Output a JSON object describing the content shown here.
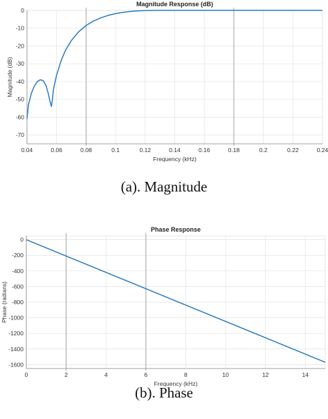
{
  "chart_data": [
    {
      "type": "line",
      "title": "Magnitude Response (dB)",
      "xlabel": "Frequency (kHz)",
      "ylabel": "Magnitude (dB)",
      "xlim": [
        0.04,
        0.24
      ],
      "ylim": [
        -75,
        0
      ],
      "xticks": [
        0.04,
        0.06,
        0.08,
        0.1,
        0.12,
        0.14,
        0.16,
        0.18,
        0.2,
        0.22,
        0.24
      ],
      "xtick_labels": [
        "0.04",
        "0.06",
        "0.08",
        "0.1",
        "0.12",
        "0.14",
        "0.16",
        "0.18",
        "0.2",
        "0.22",
        "0.24"
      ],
      "yticks": [
        0,
        -10,
        -20,
        -30,
        -40,
        -50,
        -60,
        -70
      ],
      "ytick_labels": [
        "0",
        "-10",
        "-20",
        "-30",
        "-40",
        "-50",
        "-60",
        "-70"
      ],
      "grid": true,
      "color": "#2a7bbf",
      "series": [
        {
          "x": [
            0.04,
            0.041,
            0.043,
            0.045,
            0.047,
            0.049,
            0.051,
            0.053,
            0.0545,
            0.0555,
            0.0565,
            0.057,
            0.058,
            0.06,
            0.063,
            0.066,
            0.07,
            0.075,
            0.08,
            0.085,
            0.09,
            0.095,
            0.1,
            0.105,
            0.11,
            0.115,
            0.12,
            0.13,
            0.14,
            0.16,
            0.18,
            0.2,
            0.22,
            0.24
          ],
          "y": [
            -61,
            -53,
            -46.5,
            -42.5,
            -40,
            -39,
            -39.5,
            -42.5,
            -47,
            -51,
            -54,
            -51.5,
            -44,
            -36.5,
            -28.5,
            -22.5,
            -17,
            -12,
            -8.5,
            -6,
            -4.2,
            -2.8,
            -1.8,
            -1.1,
            -0.6,
            -0.3,
            -0.1,
            0,
            0,
            0,
            0,
            0,
            0,
            0
          ]
        }
      ]
    },
    {
      "type": "line",
      "title": "Phase Response",
      "xlabel": "Frequency (kHz)",
      "ylabel": "Phase (radians)",
      "xlim": [
        0,
        15
      ],
      "ylim": [
        -1650,
        50
      ],
      "xticks": [
        0,
        2,
        4,
        6,
        8,
        10,
        12,
        14
      ],
      "xtick_labels": [
        "0",
        "2",
        "4",
        "6",
        "8",
        "10",
        "12",
        "14"
      ],
      "yticks": [
        0,
        -200,
        -400,
        -600,
        -800,
        -1000,
        -1200,
        -1400,
        -1600
      ],
      "ytick_labels": [
        "0",
        "-200",
        "-400",
        "-600",
        "-800",
        "-1000",
        "-1200",
        "-1400",
        "-1600"
      ],
      "grid": true,
      "color": "#2a7bbf",
      "series": [
        {
          "x": [
            0,
            15
          ],
          "y": [
            0,
            -1570
          ]
        }
      ]
    }
  ],
  "captions": {
    "a": "(a). Magnitude",
    "b": "(b). Phase"
  }
}
